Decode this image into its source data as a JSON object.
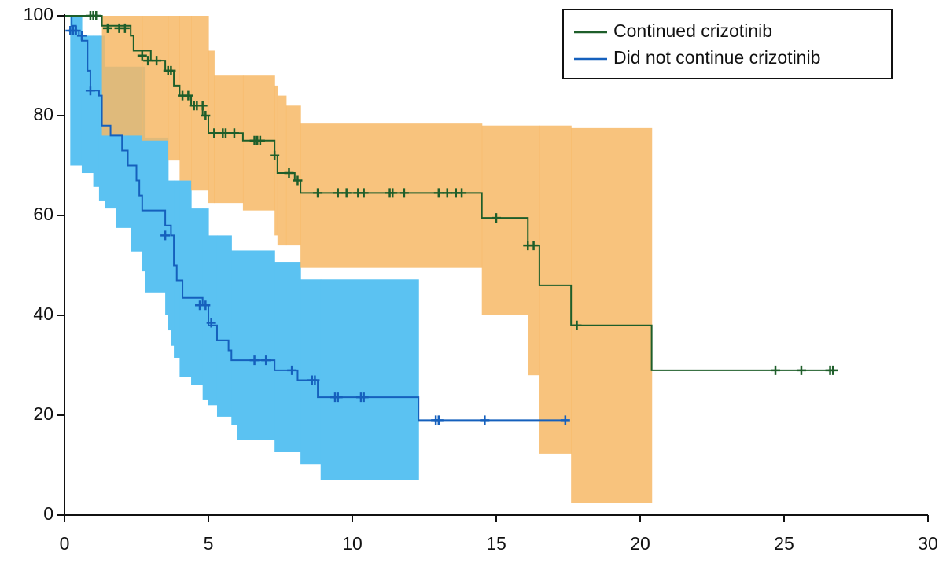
{
  "chart_data": {
    "type": "step",
    "xlim": [
      0,
      30
    ],
    "xticks": [
      0,
      5,
      10,
      15,
      20,
      25,
      30
    ],
    "ylim": [
      0,
      100
    ],
    "yticks": [
      0,
      20,
      40,
      60,
      80,
      100
    ],
    "legend": "upper right",
    "series": [
      {
        "name": "Continued crizotinib",
        "color": "#1e5e2a",
        "band_color": "#f7b866",
        "x": [
          0,
          1.3,
          2.3,
          2.4,
          3.0,
          3.5,
          3.8,
          4.0,
          4.4,
          4.8,
          5.0,
          6.2,
          7.3,
          7.4,
          8.0,
          8.2,
          14.5,
          16.1,
          16.5,
          17.6,
          20.4,
          26.7
        ],
        "values": [
          100,
          98,
          96,
          93,
          91,
          89,
          86,
          84,
          82,
          80,
          76.5,
          75,
          72,
          68.5,
          67,
          64.5,
          59.5,
          54,
          46,
          38,
          29,
          29
        ],
        "censored_x": [
          0.9,
          1.0,
          1.1,
          1.5,
          1.9,
          2.1,
          2.7,
          2.9,
          3.2,
          3.6,
          3.7,
          4.1,
          4.3,
          4.5,
          4.6,
          4.8,
          4.9,
          5.2,
          5.5,
          5.6,
          5.9,
          6.6,
          6.7,
          6.8,
          7.3,
          7.8,
          8.1,
          8.8,
          9.5,
          9.8,
          10.2,
          10.4,
          11.3,
          11.4,
          11.8,
          13.0,
          13.3,
          13.6,
          13.8,
          15.0,
          16.1,
          16.3,
          17.8,
          24.7,
          25.6,
          26.6,
          26.7
        ],
        "censored_values": [
          100,
          100,
          100,
          97.5,
          97.5,
          97.5,
          92,
          91,
          91,
          89,
          89,
          84,
          84,
          82,
          82,
          82,
          80,
          76.5,
          76.5,
          76.5,
          76.5,
          75,
          75,
          75,
          72,
          68.5,
          67,
          64.5,
          64.5,
          64.5,
          64.5,
          64.5,
          64.5,
          64.5,
          64.5,
          64.5,
          64.5,
          64.5,
          64.5,
          59.5,
          54,
          54,
          38,
          29,
          29,
          29,
          29
        ],
        "ci_x": [
          1.3,
          2.7,
          3.6,
          4.0,
          4.4,
          5.0,
          5.2,
          6.2,
          7.3,
          7.4,
          7.7,
          8.2,
          14.5,
          16.1,
          16.5,
          17.6
        ],
        "ci_lower": [
          76,
          75,
          71,
          67,
          65,
          62.5,
          62.5,
          61,
          56,
          54,
          54,
          49.5,
          40,
          28,
          12.3,
          2.4
        ],
        "ci_upper": [
          100,
          100,
          100,
          100,
          100,
          93,
          88,
          88,
          86,
          84,
          82,
          78.4,
          78,
          78,
          78,
          77.5
        ],
        "ci_end": 20.4
      },
      {
        "name": "Did not continue crizotinib",
        "color": "#1560bd",
        "band_color": "#5bc2f2",
        "x": [
          0,
          0.25,
          0.4,
          0.5,
          0.6,
          0.8,
          0.9,
          1.2,
          1.3,
          1.6,
          2.0,
          2.2,
          2.5,
          2.6,
          2.7,
          3.5,
          3.7,
          3.8,
          3.9,
          4.1,
          4.8,
          5.0,
          5.3,
          5.7,
          5.8,
          7.3,
          8.1,
          8.8,
          12.3,
          17.5
        ],
        "values": [
          100,
          98,
          97,
          96,
          95,
          89,
          85,
          84,
          78,
          76,
          73,
          70,
          67,
          64,
          61,
          58,
          56,
          50,
          47,
          43.5,
          42,
          38,
          35,
          33,
          31,
          29,
          27,
          23.6,
          19,
          19
        ],
        "censored_x": [
          0.2,
          0.3,
          0.4,
          0.6,
          0.9,
          3.5,
          4.7,
          4.9,
          5.1,
          6.6,
          7.0,
          7.9,
          8.6,
          8.7,
          9.4,
          9.5,
          10.3,
          10.4,
          12.9,
          13.0,
          14.6,
          17.4
        ],
        "censored_values": [
          97,
          97,
          97,
          96,
          85,
          56,
          42,
          42,
          38.5,
          31,
          31,
          29,
          27,
          27,
          23.6,
          23.6,
          23.6,
          23.6,
          19,
          19,
          19,
          19
        ],
        "ci_x": [
          0.2,
          0.6,
          1.0,
          1.2,
          1.4,
          1.8,
          2.3,
          2.7,
          2.8,
          3.5,
          3.6,
          3.7,
          3.8,
          4.0,
          4.4,
          4.8,
          5.0,
          5.3,
          5.8,
          6.0,
          7.3,
          8.2,
          8.9
        ],
        "ci_lower": [
          70,
          68.5,
          65.7,
          63,
          61.4,
          57.5,
          52.8,
          48.8,
          44.6,
          40,
          37,
          33.9,
          31.5,
          27.6,
          26,
          23,
          22,
          19.7,
          18,
          15,
          12.6,
          10.2,
          7
        ],
        "ci_upper": [
          100,
          96,
          96,
          96,
          89.8,
          89.8,
          89.8,
          89.8,
          75.6,
          75.6,
          67,
          67,
          67,
          67,
          61.4,
          61.4,
          56,
          56,
          53,
          53,
          50.7,
          47.2,
          47.2
        ],
        "ci_end": 12.3
      }
    ]
  }
}
